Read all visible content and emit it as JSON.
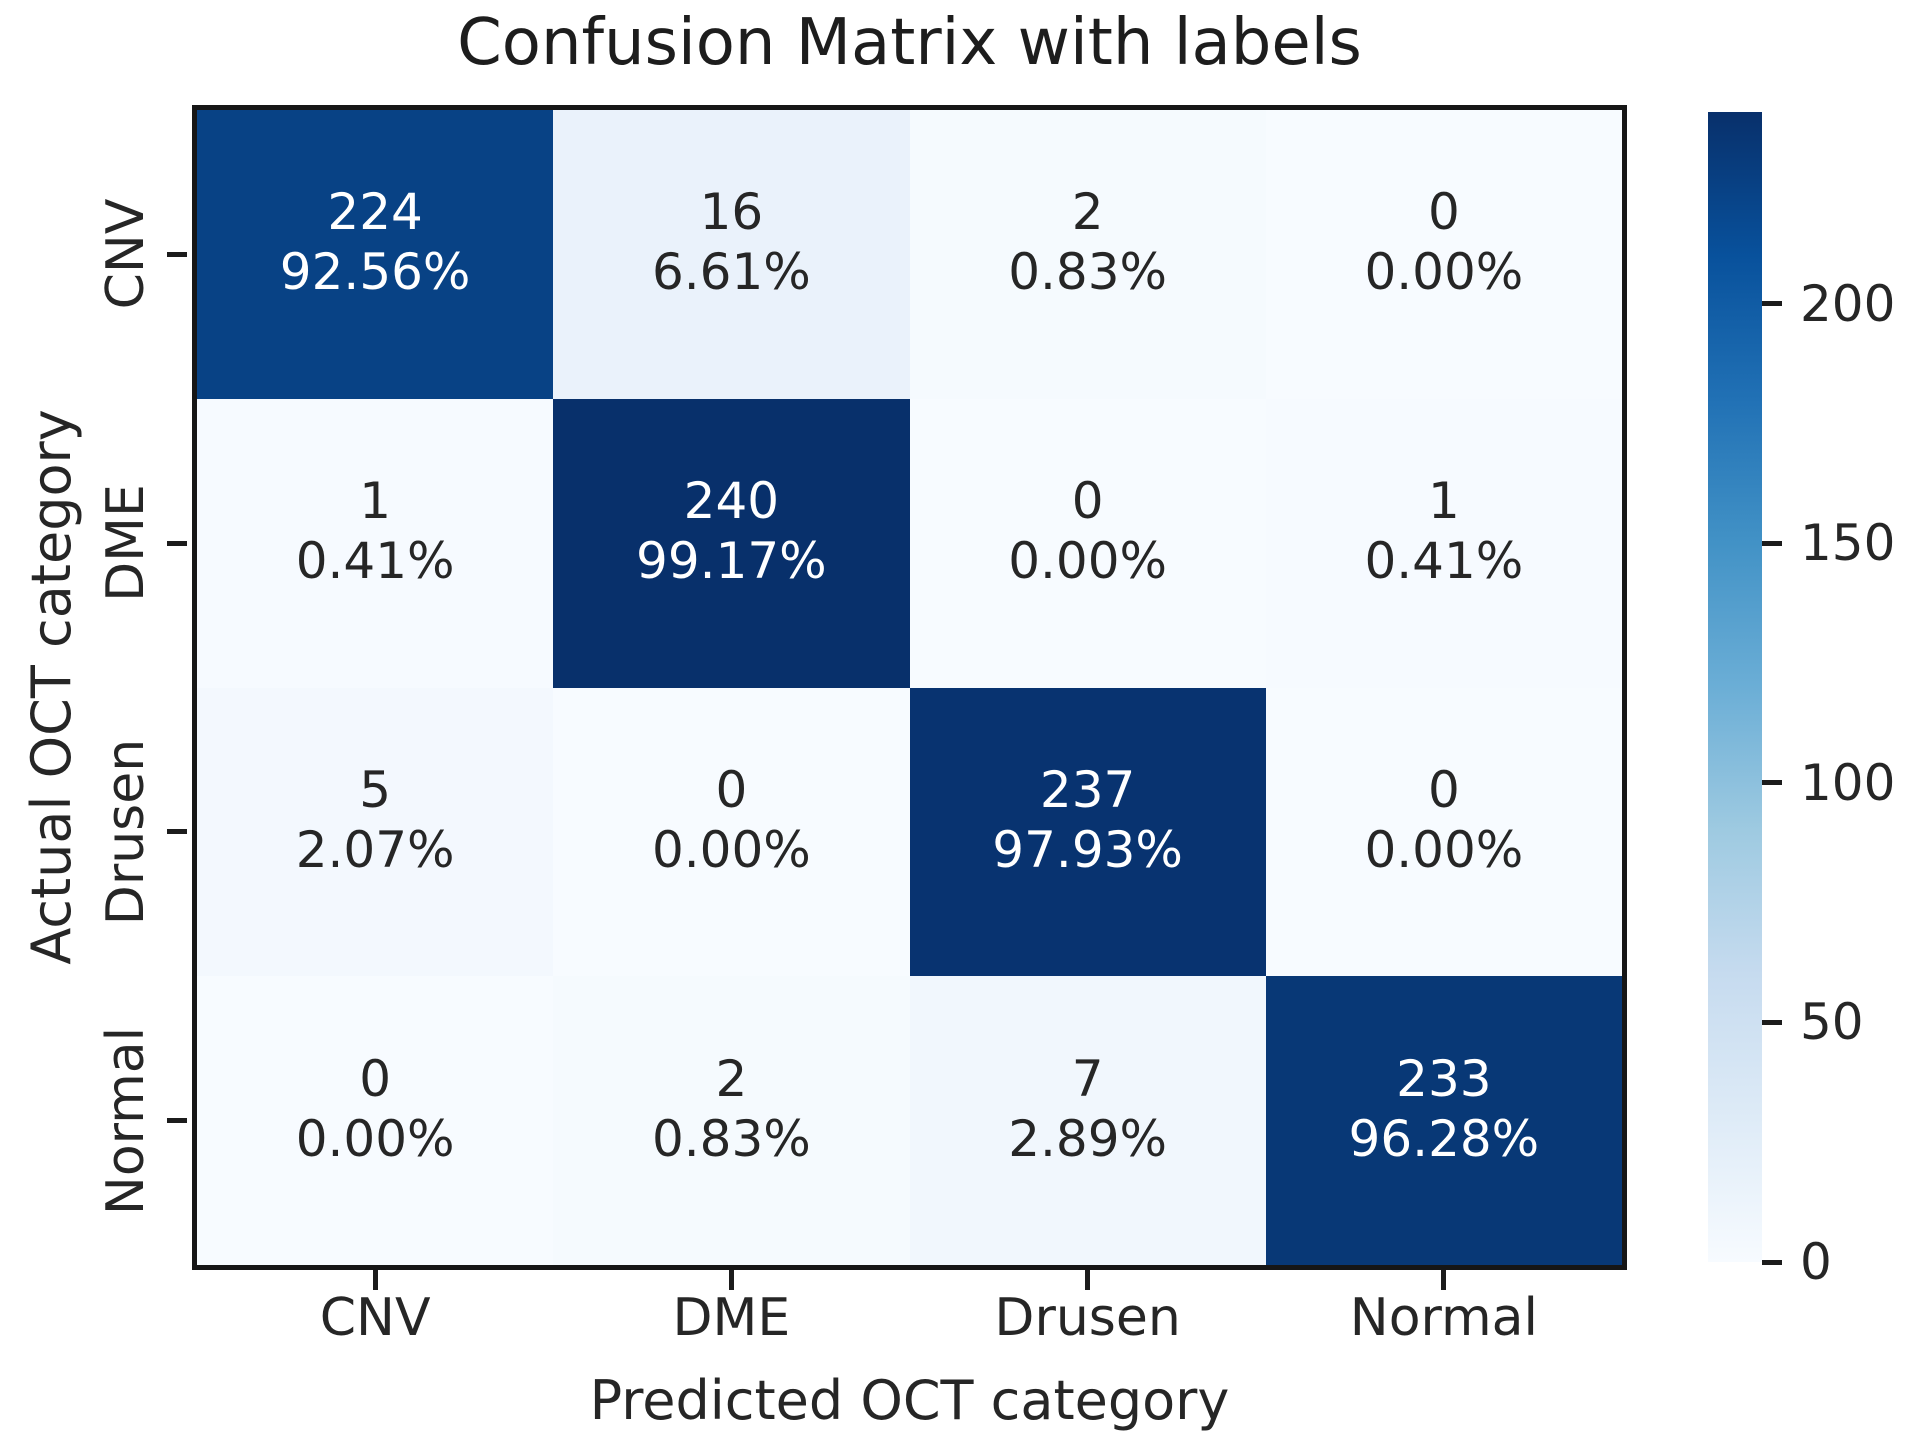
{
  "figure": {
    "background": "#ffffff",
    "frame_color": "#161616",
    "tick_color": "#1c1c1c",
    "text_color": "#262626",
    "title_color": "#1d1d1d"
  },
  "chart_data": {
    "type": "heatmap",
    "title": "Confusion Matrix with labels",
    "xlabel": "Predicted OCT category",
    "ylabel": "Actual OCT category",
    "x_categories": [
      "CNV",
      "DME",
      "Drusen",
      "Normal"
    ],
    "y_categories": [
      "CNV",
      "DME",
      "Drusen",
      "Normal"
    ],
    "values": [
      [
        224,
        16,
        2,
        0
      ],
      [
        1,
        240,
        0,
        1
      ],
      [
        5,
        0,
        237,
        0
      ],
      [
        0,
        2,
        7,
        233
      ]
    ],
    "percent_labels": [
      [
        "92.56%",
        "6.61%",
        "0.83%",
        "0.00%"
      ],
      [
        "0.41%",
        "99.17%",
        "0.00%",
        "0.41%"
      ],
      [
        "2.07%",
        "0.00%",
        "97.93%",
        "0.00%"
      ],
      [
        "0.00%",
        "0.83%",
        "2.89%",
        "96.28%"
      ]
    ],
    "cell_colors": [
      [
        "#084285",
        "#eaf2fb",
        "#f5fafe",
        "#f7fbff"
      ],
      [
        "#f6faff",
        "#08306b",
        "#f7fbff",
        "#f6faff"
      ],
      [
        "#f3f8fe",
        "#f7fbff",
        "#083370",
        "#f7fbff"
      ],
      [
        "#f7fbff",
        "#f5fafe",
        "#f1f7fd",
        "#083876"
      ]
    ],
    "cell_text_colors": [
      [
        "#ffffff",
        "#262626",
        "#262626",
        "#262626"
      ],
      [
        "#262626",
        "#ffffff",
        "#262626",
        "#262626"
      ],
      [
        "#262626",
        "#262626",
        "#ffffff",
        "#262626"
      ],
      [
        "#262626",
        "#262626",
        "#262626",
        "#ffffff"
      ]
    ],
    "colormap": "Blues",
    "colorbar": {
      "vmin": 0,
      "vmax": 240,
      "ticks": [
        0,
        50,
        100,
        150,
        200
      ],
      "gradient_stops": [
        "#f7fbff",
        "#deebf7",
        "#c6dbef",
        "#9ecae1",
        "#6baed6",
        "#4292c6",
        "#2171b5",
        "#08519c",
        "#08306b"
      ]
    },
    "grid": false,
    "legend": "colorbar-right"
  }
}
